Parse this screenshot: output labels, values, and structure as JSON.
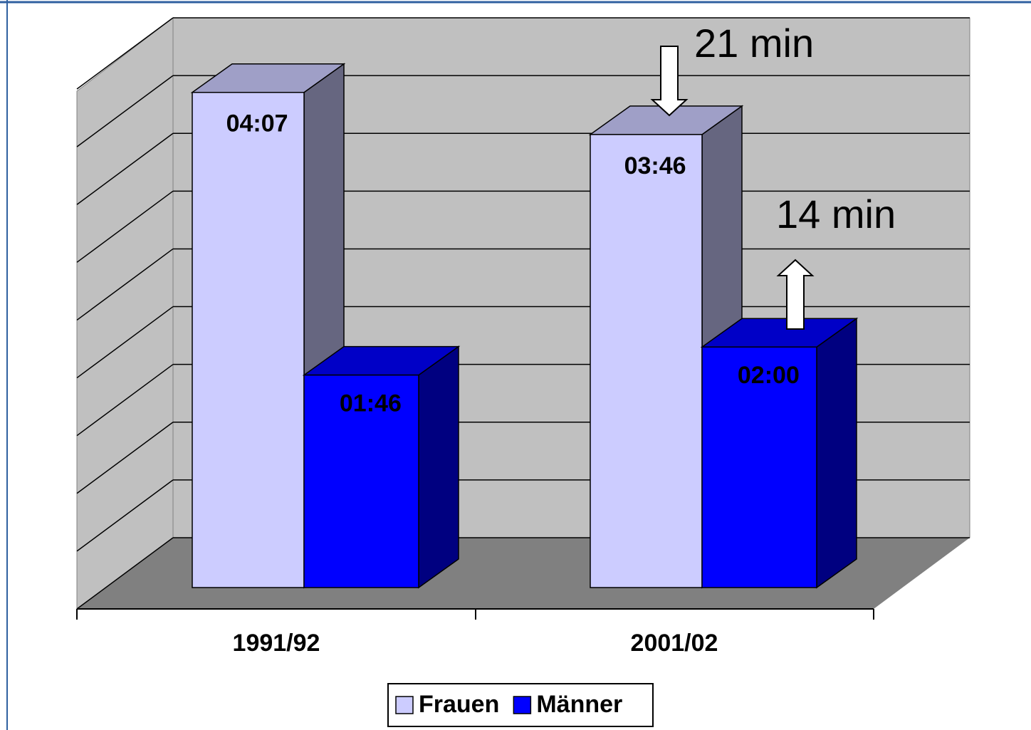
{
  "chart_data": {
    "type": "bar3d",
    "categories": [
      "1991/92",
      "2001/02"
    ],
    "series": [
      {
        "name": "Frauen",
        "color": "#ccccff",
        "values": [
          247,
          226
        ],
        "value_labels": [
          "04:07",
          "03:46"
        ]
      },
      {
        "name": "Männer",
        "color": "#0000ff",
        "values": [
          106,
          120
        ],
        "value_labels": [
          "01:46",
          "02:00"
        ]
      }
    ],
    "ylim": [
      0,
      270
    ],
    "yticks": [
      0,
      30,
      60,
      90,
      120,
      150,
      180,
      210,
      240,
      270
    ],
    "grid": true,
    "annotations": [
      "21 min",
      "14 min"
    ]
  }
}
